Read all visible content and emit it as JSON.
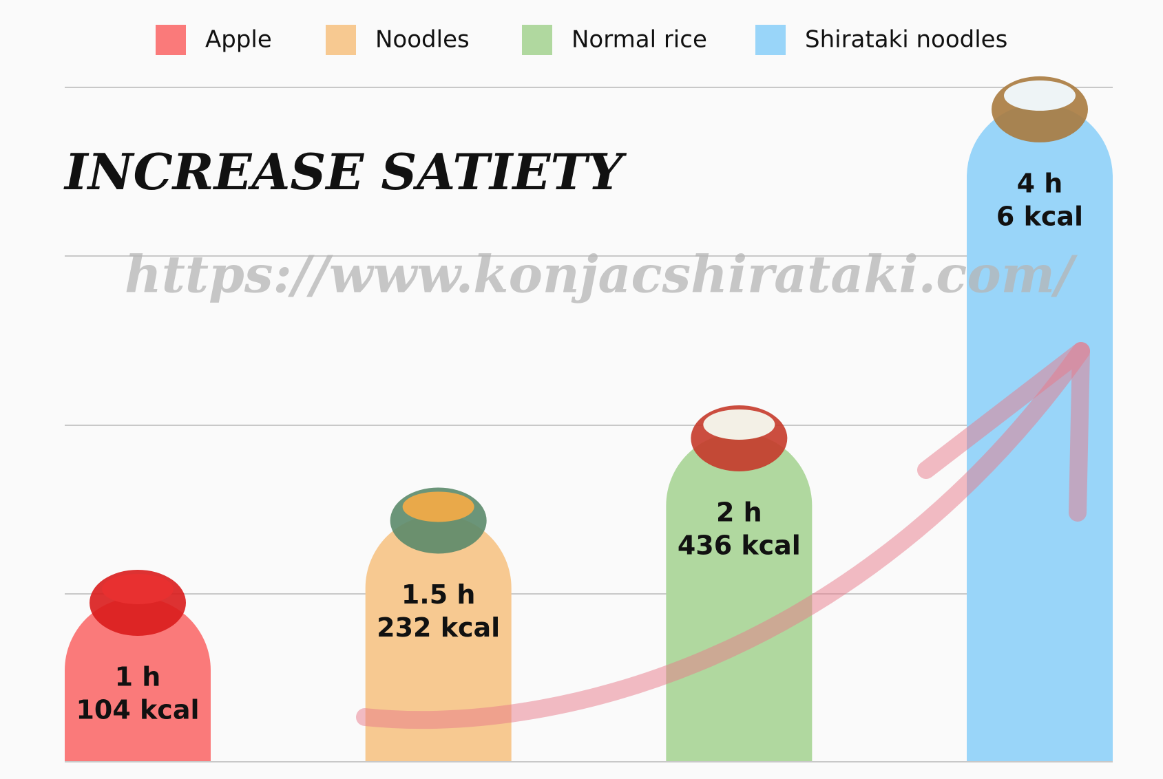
{
  "chart_data": {
    "type": "bar",
    "title": "INCREASE SATIETY",
    "watermark": "https://www.konjacshirataki.com/",
    "categories": [
      "Apple",
      "Noodles",
      "Normal rice",
      "Shirataki noodles"
    ],
    "colors": [
      "#fa7a7a",
      "#f7c991",
      "#b0d89f",
      "#99d5f9"
    ],
    "values": [
      1,
      1.5,
      2,
      4
    ],
    "value_labels": [
      "1 h",
      "1.5 h",
      "2 h",
      "4 h"
    ],
    "kcal": [
      104,
      232,
      436,
      6
    ],
    "kcal_labels": [
      "104 kcal",
      "232 kcal",
      "436 kcal",
      "6 kcal"
    ],
    "ylim": [
      0,
      4.1
    ]
  }
}
